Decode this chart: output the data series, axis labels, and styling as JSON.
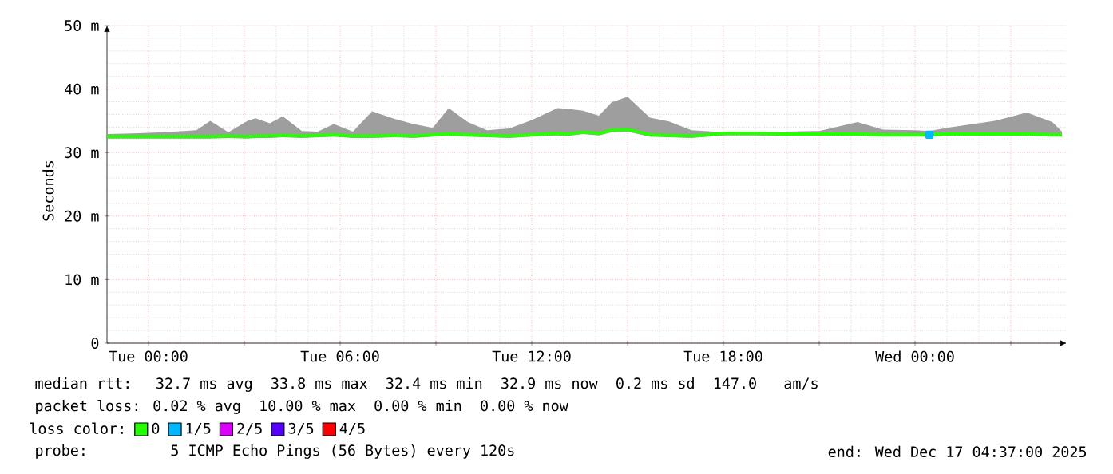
{
  "chart_data": {
    "type": "line",
    "ylabel": "Seconds",
    "x": [
      "2025-12-15T22:42",
      "2025-12-15T23:30",
      "2025-12-16T00:30",
      "2025-12-16T01:30",
      "2025-12-16T01:56",
      "2025-12-16T02:30",
      "2025-12-16T03:06",
      "2025-12-16T03:21",
      "2025-12-16T03:48",
      "2025-12-16T04:12",
      "2025-12-16T04:48",
      "2025-12-16T05:18",
      "2025-12-16T05:48",
      "2025-12-16T06:24",
      "2025-12-16T07:00",
      "2025-12-16T07:42",
      "2025-12-16T08:18",
      "2025-12-16T08:54",
      "2025-12-16T09:24",
      "2025-12-16T10:00",
      "2025-12-16T10:36",
      "2025-12-16T11:18",
      "2025-12-16T12:00",
      "2025-12-16T12:48",
      "2025-12-16T13:06",
      "2025-12-16T13:36",
      "2025-12-16T14:06",
      "2025-12-16T14:30",
      "2025-12-16T15:00",
      "2025-12-16T15:42",
      "2025-12-16T16:18",
      "2025-12-16T17:00",
      "2025-12-16T18:00",
      "2025-12-16T19:00",
      "2025-12-16T20:00",
      "2025-12-16T21:00",
      "2025-12-16T22:12",
      "2025-12-16T23:00",
      "2025-12-17T00:00",
      "2025-12-17T00:27",
      "2025-12-17T01:00",
      "2025-12-17T02:30",
      "2025-12-17T03:30",
      "2025-12-17T04:18",
      "2025-12-17T04:36"
    ],
    "series": [
      {
        "name": "0",
        "color": "#26ff00",
        "values": [
          32.5,
          32.5,
          32.5,
          32.5,
          32.5,
          32.6,
          32.5,
          32.6,
          32.6,
          32.7,
          32.6,
          32.7,
          32.8,
          32.6,
          32.6,
          32.7,
          32.6,
          32.8,
          32.9,
          32.8,
          32.7,
          32.6,
          32.8,
          33.0,
          32.9,
          33.2,
          33.0,
          33.5,
          33.6,
          32.8,
          32.7,
          32.6,
          33.0,
          33.0,
          32.9,
          32.9,
          32.9,
          32.8,
          32.8,
          32.8,
          32.9,
          32.9,
          32.9,
          32.8,
          32.8
        ],
        "lower": [
          32.2,
          32.2,
          32.2,
          32.2,
          32.2,
          32.3,
          32.2,
          32.3,
          32.3,
          32.4,
          32.3,
          32.4,
          32.5,
          32.3,
          32.3,
          32.4,
          32.3,
          32.5,
          32.6,
          32.5,
          32.4,
          32.3,
          32.5,
          32.7,
          32.6,
          32.9,
          32.7,
          33.2,
          33.3,
          32.5,
          32.4,
          32.3,
          32.7,
          32.7,
          32.6,
          32.6,
          32.6,
          32.5,
          32.5,
          32.5,
          32.6,
          32.6,
          32.6,
          32.5,
          32.5
        ],
        "upper": [
          32.9,
          33.0,
          33.2,
          33.5,
          35.0,
          33.2,
          35.0,
          35.4,
          34.6,
          35.7,
          33.4,
          33.3,
          34.5,
          33.3,
          36.5,
          35.3,
          34.5,
          33.9,
          37.0,
          34.8,
          33.5,
          33.8,
          35.1,
          37.0,
          36.9,
          36.6,
          35.8,
          37.9,
          38.8,
          35.5,
          34.9,
          33.5,
          33.2,
          33.3,
          33.3,
          33.4,
          34.8,
          33.6,
          33.5,
          33.4,
          33.9,
          35.0,
          36.3,
          34.8,
          33.3
        ]
      },
      {
        "name": "1/5",
        "color": "#00b8ff",
        "marker": "square",
        "x": [
          "2025-12-17T00:27"
        ],
        "values": [
          32.8
        ]
      },
      {
        "name": "2/5",
        "color": "#dd00ff",
        "values": [
          null,
          null,
          null,
          null,
          null,
          null,
          null,
          null,
          null,
          null,
          null,
          null,
          null,
          null,
          null,
          null,
          null,
          null,
          null,
          null,
          null,
          null,
          null,
          null,
          null,
          null,
          null,
          null,
          null,
          null,
          null,
          null,
          null,
          null,
          null,
          null,
          null,
          null,
          null,
          null,
          null,
          null,
          null,
          null,
          null
        ]
      },
      {
        "name": "3/5",
        "color": "#5500ff",
        "values": [
          null,
          null,
          null,
          null,
          null,
          null,
          null,
          null,
          null,
          null,
          null,
          null,
          null,
          null,
          null,
          null,
          null,
          null,
          null,
          null,
          null,
          null,
          null,
          null,
          null,
          null,
          null,
          null,
          null,
          null,
          null,
          null,
          null,
          null,
          null,
          null,
          null,
          null,
          null,
          null,
          null,
          null,
          null,
          null,
          null
        ]
      },
      {
        "name": "4/5",
        "color": "#ff0000",
        "values": [
          null,
          null,
          null,
          null,
          null,
          null,
          null,
          null,
          null,
          null,
          null,
          null,
          null,
          null,
          null,
          null,
          null,
          null,
          null,
          null,
          null,
          null,
          null,
          null,
          null,
          null,
          null,
          null,
          null,
          null,
          null,
          null,
          null,
          null,
          null,
          null,
          null,
          null,
          null,
          null,
          null,
          null,
          null,
          null,
          null
        ]
      }
    ],
    "legend_title": "loss color:",
    "legend": "bottom",
    "xlim": [
      "2025-12-15T22:42",
      "2025-12-17T04:45"
    ],
    "xticks": [
      {
        "value": "2025-12-16T00:00",
        "label": "Tue 00:00"
      },
      {
        "value": "2025-12-16T03:00",
        "label": null
      },
      {
        "value": "2025-12-16T06:00",
        "label": "Tue 06:00"
      },
      {
        "value": "2025-12-16T09:00",
        "label": null
      },
      {
        "value": "2025-12-16T12:00",
        "label": "Tue 12:00"
      },
      {
        "value": "2025-12-16T15:00",
        "label": null
      },
      {
        "value": "2025-12-16T18:00",
        "label": "Tue 18:00"
      },
      {
        "value": "2025-12-16T21:00",
        "label": null
      },
      {
        "value": "2025-12-17T00:00",
        "label": "Wed 00:00"
      },
      {
        "value": "2025-12-17T03:00",
        "label": null
      }
    ],
    "ylim": [
      0,
      50
    ],
    "yticks": [
      0,
      {
        "value": 10,
        "label": "10 m"
      },
      {
        "value": 20,
        "label": "20 m"
      },
      {
        "value": 30,
        "label": "30 m"
      },
      {
        "value": 40,
        "label": "40 m"
      },
      {
        "value": 50,
        "label": "50 m"
      }
    ],
    "grid": true,
    "annotations": [
      "median rtt:  32.7 ms avg  33.8 ms max  32.4 ms min  32.9 ms now  0.2 ms sd  147.0   am/s",
      "packet loss: 0.02 % avg  10.00 % max  0.00 % min  0.00 % now",
      "probe:       5 ICMP Echo Pings (56 Bytes) every 120s",
      "end: Wed Dec 17 04:37:00 2025"
    ]
  }
}
